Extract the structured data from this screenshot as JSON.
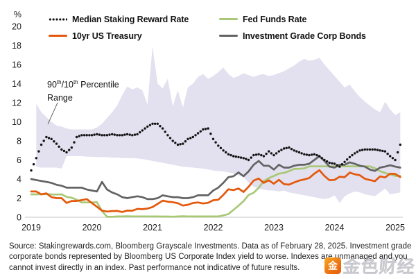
{
  "legend": {
    "items": [
      {
        "id": "staking",
        "label": "Median Staking Reward Rate",
        "style": "dotted",
        "color": "#141414"
      },
      {
        "id": "treasury",
        "label": "10yr US Treasury",
        "style": "solid",
        "color": "#e4580b"
      },
      {
        "id": "fedfunds",
        "label": "Fed Funds Rate",
        "style": "solid",
        "color": "#a9c876"
      },
      {
        "id": "corpbonds",
        "label": "Investment Grade Corp Bonds",
        "style": "solid",
        "color": "#636363"
      }
    ]
  },
  "annotation": {
    "part1": "90",
    "sup1": "th",
    "part2": "/10",
    "sup2": "th",
    "part3": " Percentile",
    "line2": "Range"
  },
  "chart_data": {
    "type": "line",
    "title": "",
    "y_unit": "%",
    "ylim": [
      0,
      20
    ],
    "y_ticks": [
      0,
      2,
      4,
      6,
      8,
      10,
      12,
      14,
      16,
      18,
      20
    ],
    "x_tick_labels": [
      "2019",
      "2020",
      "2021",
      "2022",
      "2023",
      "2024",
      "2025"
    ],
    "x_start": "2019-01",
    "x_end": "2025-02",
    "x_step": "monthly",
    "grid": "baseline-only",
    "legend_position": "top",
    "band": {
      "name": "90th/10th Percentile Range",
      "color": "#e3e0ef",
      "top": [
        null,
        11.9,
        11.0,
        10.5,
        10.0,
        9.6,
        9.5,
        9.3,
        9.2,
        9.2,
        9.2,
        9.2,
        9.2,
        9.4,
        9.8,
        10.4,
        11.0,
        11.7,
        12.8,
        13.7,
        13.4,
        13.6,
        13.3,
        11.8,
        17.9,
        14.0,
        13.5,
        14.5,
        11.6,
        13.3,
        11.5,
        13.6,
        14.0,
        14.7,
        15.0,
        14.5,
        14.8,
        15.2,
        15.7,
        15.0,
        14.6,
        14.8,
        15.1,
        14.9,
        14.7,
        14.9,
        15.0,
        14.8,
        14.9,
        15.1,
        15.3,
        15.6,
        15.9,
        16.3,
        16.6,
        16.4,
        16.5,
        16.7,
        16.0,
        15.4,
        14.8,
        14.2,
        13.6,
        13.9,
        13.2,
        12.6,
        12.1,
        11.7,
        11.3,
        11.0,
        12.1,
        11.3,
        10.7,
        11.0
      ],
      "bottom": [
        null,
        5.3,
        5.2,
        5.2,
        5.2,
        5.2,
        5.1,
        6.4,
        6.4,
        6.4,
        6.4,
        6.35,
        6.35,
        6.3,
        6.3,
        6.3,
        6.25,
        6.25,
        6.2,
        6.2,
        6.2,
        6.15,
        6.1,
        6.0,
        5.9,
        5.8,
        5.7,
        5.6,
        5.5,
        5.4,
        5.3,
        5.25,
        5.2,
        5.15,
        5.1,
        5.0,
        4.9,
        4.85,
        4.8,
        4.7,
        4.6,
        4.4,
        4.2,
        3.6,
        3.2,
        3.0,
        2.9,
        2.8,
        2.8,
        2.7,
        2.8,
        2.6,
        2.5,
        2.4,
        2.3,
        2.2,
        2.1,
        2.0,
        1.9,
        2.0,
        2.3,
        1.5,
        2.2,
        2.5,
        2.7,
        2.6,
        2.4,
        2.3,
        2.2,
        2.6,
        3.0,
        2.4,
        2.5,
        2.6
      ]
    },
    "series": [
      {
        "id": "fedfunds",
        "name": "Fed Funds Rate",
        "style": "solid",
        "color": "#a9c876",
        "values": [
          2.4,
          2.4,
          2.41,
          2.42,
          2.39,
          2.38,
          2.4,
          2.13,
          2.04,
          1.83,
          1.55,
          1.55,
          1.55,
          1.58,
          0.65,
          0.05,
          0.05,
          0.08,
          0.09,
          0.1,
          0.09,
          0.09,
          0.09,
          0.09,
          0.09,
          0.08,
          0.07,
          0.07,
          0.06,
          0.08,
          0.1,
          0.09,
          0.08,
          0.08,
          0.08,
          0.08,
          0.08,
          0.08,
          0.2,
          0.33,
          0.77,
          1.21,
          1.68,
          2.33,
          2.56,
          3.08,
          3.78,
          4.1,
          4.33,
          4.57,
          4.65,
          4.83,
          5.06,
          5.08,
          5.12,
          5.33,
          5.33,
          5.33,
          5.33,
          5.33,
          5.33,
          5.33,
          5.33,
          5.33,
          5.33,
          5.33,
          5.33,
          5.33,
          5.13,
          4.83,
          4.64,
          4.48,
          4.33,
          4.33
        ]
      },
      {
        "id": "treasury",
        "name": "10yr US Treasury",
        "style": "solid",
        "color": "#e4580b",
        "values": [
          2.7,
          2.7,
          2.4,
          2.5,
          2.1,
          2.0,
          2.0,
          1.5,
          1.7,
          1.7,
          1.8,
          1.9,
          1.5,
          1.1,
          0.7,
          0.6,
          0.65,
          0.66,
          0.55,
          0.7,
          0.68,
          0.87,
          0.84,
          0.91,
          1.07,
          1.4,
          1.74,
          1.63,
          1.58,
          1.47,
          1.22,
          1.31,
          1.49,
          1.55,
          1.44,
          1.51,
          1.78,
          1.83,
          2.34,
          2.93,
          2.84,
          3.01,
          2.65,
          3.19,
          3.83,
          4.05,
          3.61,
          3.87,
          3.51,
          3.92,
          3.47,
          3.42,
          3.64,
          3.84,
          3.96,
          4.11,
          4.57,
          4.93,
          4.33,
          3.88,
          3.91,
          4.25,
          4.2,
          4.68,
          4.5,
          4.4,
          4.03,
          3.9,
          3.78,
          4.28,
          4.17,
          4.57,
          4.54,
          4.21
        ]
      },
      {
        "id": "corpbonds",
        "name": "Investment Grade Corp Bonds",
        "style": "solid",
        "color": "#636363",
        "values": [
          4.0,
          3.9,
          3.8,
          3.7,
          3.6,
          3.4,
          3.3,
          3.1,
          3.1,
          3.1,
          3.1,
          2.9,
          2.8,
          2.7,
          3.7,
          2.9,
          2.6,
          2.4,
          2.1,
          2.0,
          2.1,
          2.2,
          2.1,
          1.9,
          1.9,
          2.0,
          2.3,
          2.2,
          2.1,
          2.1,
          2.0,
          2.0,
          2.1,
          2.3,
          2.3,
          2.3,
          2.8,
          3.1,
          3.6,
          4.2,
          4.3,
          4.7,
          4.3,
          4.8,
          5.5,
          5.9,
          5.4,
          5.4,
          5.0,
          5.5,
          5.2,
          5.2,
          5.4,
          5.5,
          5.5,
          5.6,
          6.0,
          6.4,
          5.9,
          5.3,
          5.2,
          5.5,
          5.5,
          5.75,
          5.6,
          5.4,
          5.3,
          5.0,
          4.85,
          5.2,
          5.3,
          5.45,
          5.3,
          5.2
        ]
      },
      {
        "id": "staking",
        "name": "Median Staking Reward Rate",
        "style": "dotted",
        "color": "#141414",
        "values": [
          4.9,
          6.2,
          7.6,
          8.4,
          8.2,
          7.7,
          7.1,
          6.8,
          7.3,
          8.4,
          8.6,
          8.6,
          8.6,
          8.7,
          8.6,
          8.6,
          8.7,
          8.6,
          8.6,
          8.7,
          8.6,
          8.7,
          9.1,
          9.5,
          9.8,
          9.8,
          9.3,
          8.6,
          8.0,
          7.6,
          7.7,
          8.2,
          8.4,
          8.8,
          9.2,
          9.3,
          8.2,
          7.5,
          7.0,
          6.6,
          6.4,
          6.3,
          6.2,
          6.0,
          6.5,
          6.6,
          6.4,
          6.9,
          6.5,
          6.9,
          7.2,
          7.3,
          7.0,
          6.8,
          6.6,
          6.5,
          6.6,
          6.4,
          6.0,
          5.7,
          5.6,
          5.3,
          5.8,
          6.3,
          6.7,
          7.0,
          7.1,
          7.1,
          7.1,
          7.0,
          6.9,
          6.4,
          6.0,
          7.6
        ]
      }
    ]
  },
  "footer": {
    "source_text": "Source: Stakingrewards.com, Bloomberg Grayscale Investments. Data as of February 28, 2025. Investment grade corporate bonds represented by Bloomberg US Corporate Index yield to worse. Indexes are unmanaged and you cannot invest directly in an index. Past performance not indicative of future results."
  },
  "watermark": {
    "text": "金色财经",
    "logo_glyph": "金"
  }
}
